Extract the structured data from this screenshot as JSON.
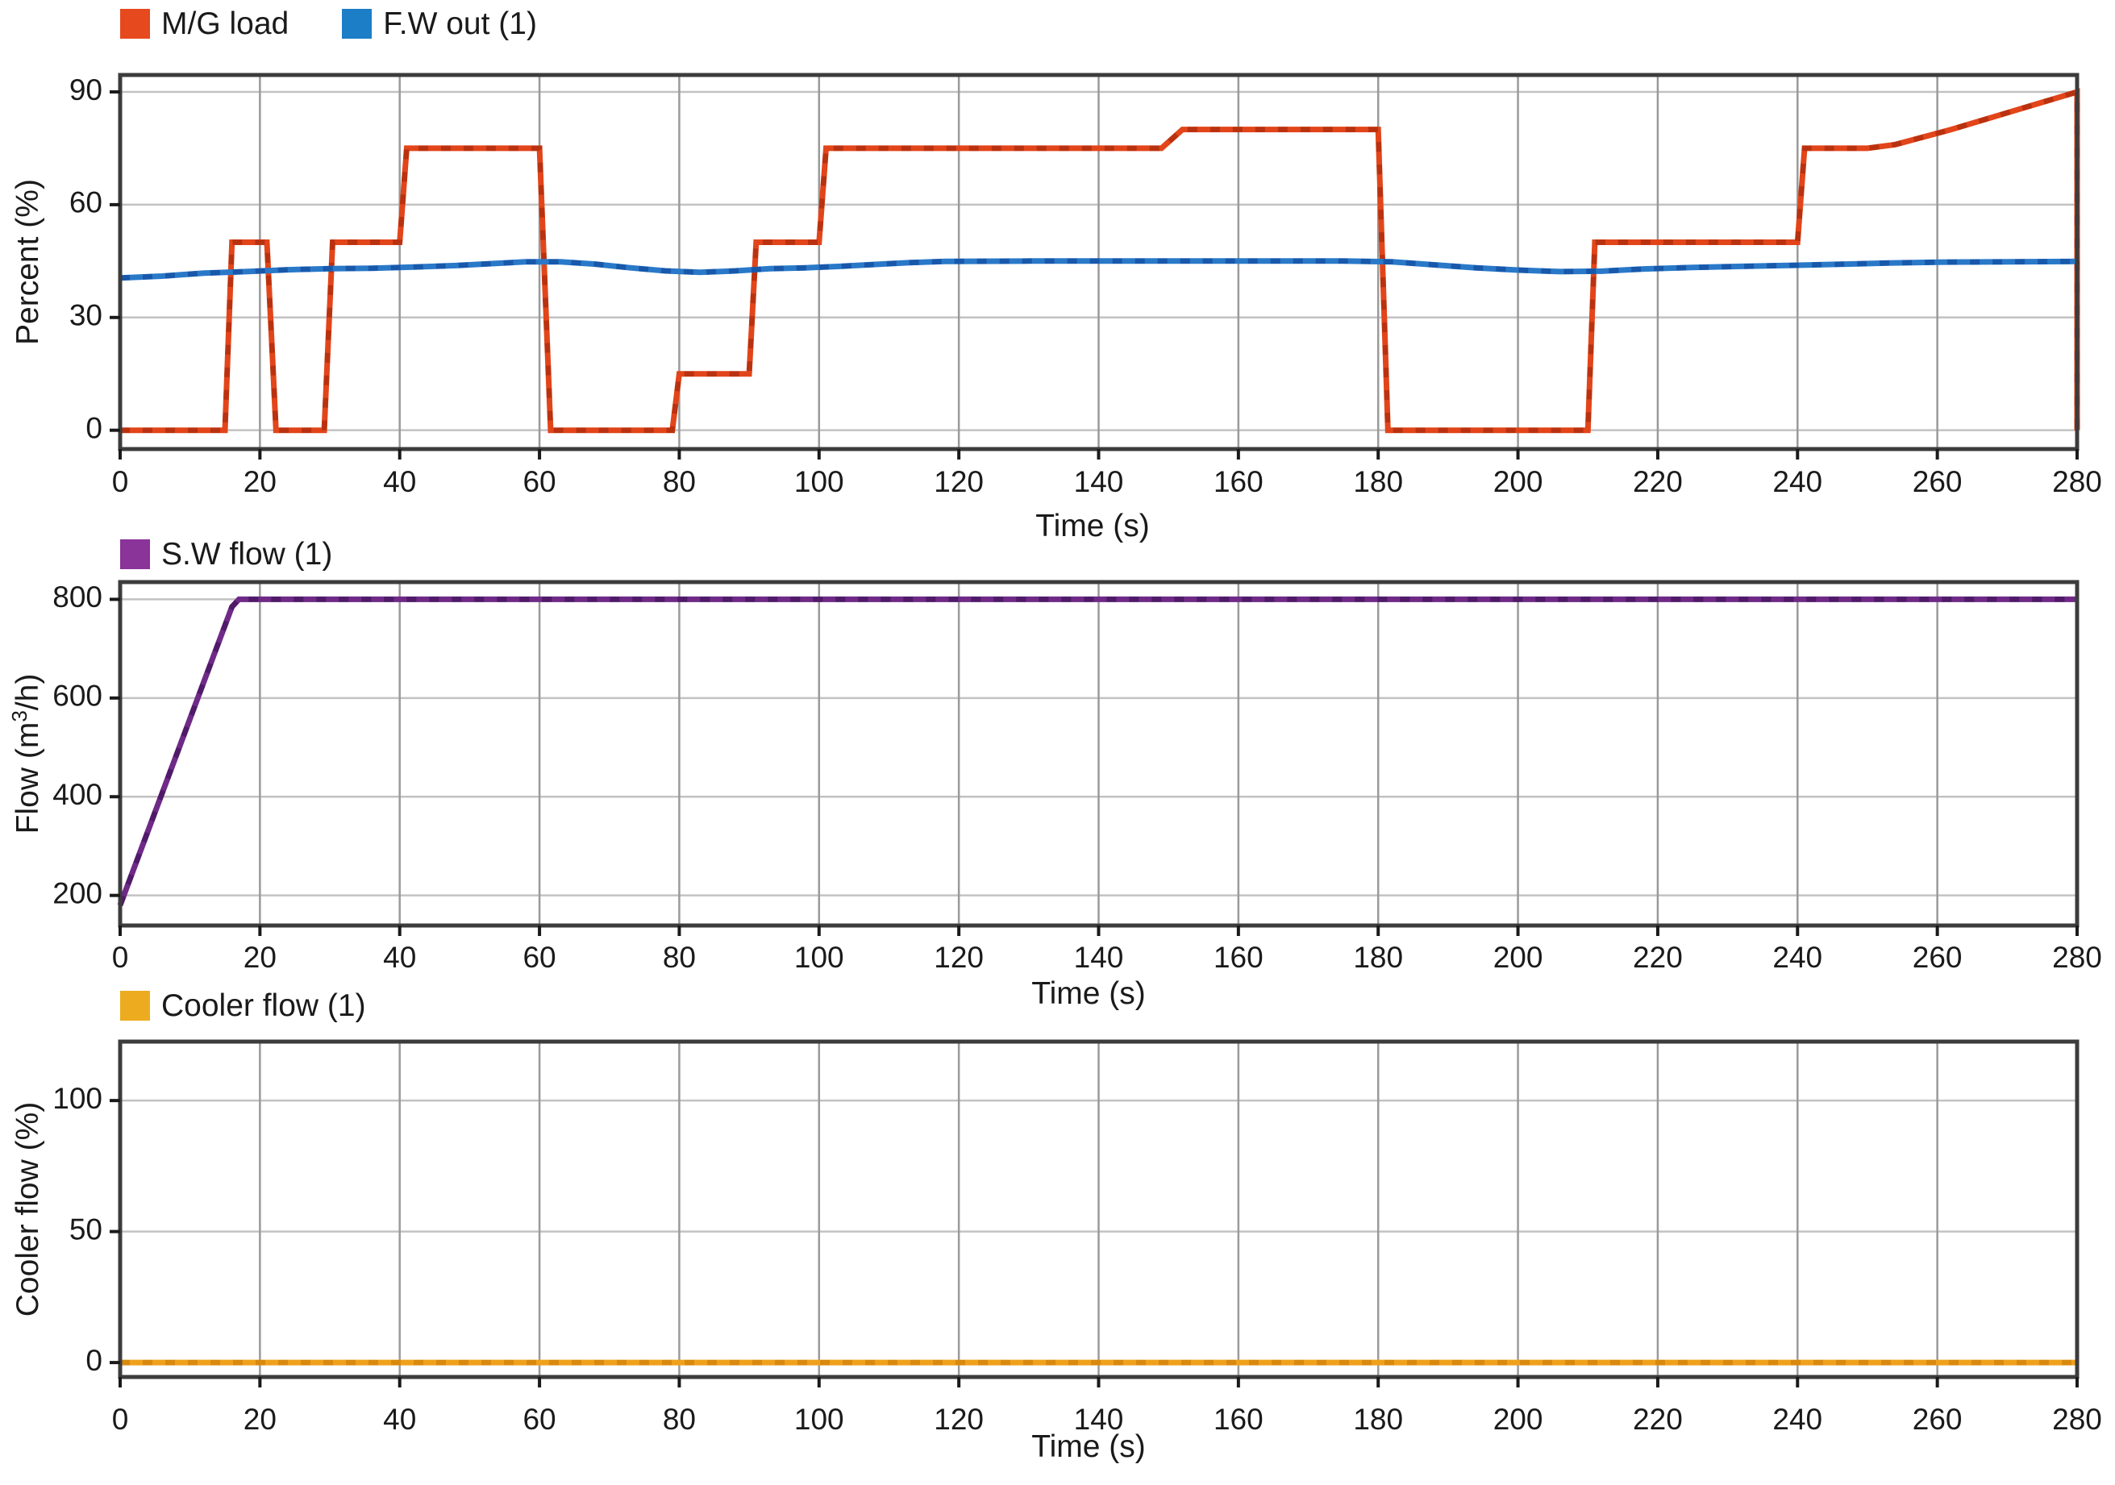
{
  "figure": {
    "background": "#ffffff",
    "frame_color": "#3c3c3c",
    "grid_color_vertical": "#9a9a9a",
    "grid_color_horizontal": "#c2c2c2",
    "tick_color": "#1a1a1a",
    "charts": [
      {
        "id": "percent",
        "legend": [
          {
            "label": "M/G load",
            "color": "#e5491d"
          },
          {
            "label": "F.W out (1)",
            "color": "#1b7ec6"
          }
        ],
        "ylabel_prefix": "Percent (%)",
        "ylabel_sup": "",
        "ylabel_suffix": "",
        "xlabel": "Time (s)",
        "xlim": [
          0,
          280
        ],
        "ylim": [
          -5,
          94.5
        ],
        "xticks": [
          0,
          20,
          40,
          60,
          80,
          100,
          120,
          140,
          160,
          180,
          200,
          220,
          240,
          260,
          280
        ],
        "yticks": [
          0,
          30,
          60,
          90
        ],
        "grid": true,
        "legend_position": "top-left"
      },
      {
        "id": "flow",
        "legend": [
          {
            "label": "S.W flow (1)",
            "color": "#8a3399"
          }
        ],
        "ylabel_prefix": "Flow (m",
        "ylabel_sup": "3",
        "ylabel_suffix": "/h)",
        "xlabel": "Time (s)",
        "xlim": [
          0,
          280
        ],
        "ylim": [
          139,
          835
        ],
        "xticks": [
          0,
          20,
          40,
          60,
          80,
          100,
          120,
          140,
          160,
          180,
          200,
          220,
          240,
          260,
          280
        ],
        "yticks": [
          200,
          400,
          600,
          800
        ],
        "grid": true,
        "legend_position": "top-left"
      },
      {
        "id": "cooler",
        "legend": [
          {
            "label": "Cooler flow (1)",
            "color": "#edab1f"
          }
        ],
        "ylabel_prefix": "Cooler flow (%)",
        "ylabel_sup": "",
        "ylabel_suffix": "",
        "xlabel": "Time (s)",
        "xlim": [
          0,
          280
        ],
        "ylim": [
          -5.5,
          122.5
        ],
        "xticks": [
          0,
          20,
          40,
          60,
          80,
          100,
          120,
          140,
          160,
          180,
          200,
          220,
          240,
          260,
          280
        ],
        "yticks": [
          0,
          50,
          100
        ],
        "grid": true,
        "legend_position": "top-left"
      }
    ],
    "chart_data": [
      {
        "type": "line",
        "title": "",
        "xlabel": "Time (s)",
        "ylabel": "Percent (%)",
        "xlim": [
          0,
          280
        ],
        "ylim": [
          -5,
          94.5
        ],
        "grid": true,
        "legend_position": "above-left",
        "series": [
          {
            "name": "M/G load",
            "color": "#e2451a",
            "dash_color": "#b93210",
            "points": [
              [
                0,
                0
              ],
              [
                15,
                0
              ],
              [
                16,
                50
              ],
              [
                21,
                50
              ],
              [
                22.3,
                0
              ],
              [
                29.2,
                0
              ],
              [
                30.4,
                50
              ],
              [
                40,
                50
              ],
              [
                41,
                75
              ],
              [
                60,
                75
              ],
              [
                61.6,
                0
              ],
              [
                79,
                0
              ],
              [
                80,
                15
              ],
              [
                90,
                15
              ],
              [
                91,
                50
              ],
              [
                100,
                50
              ],
              [
                101,
                75
              ],
              [
                149,
                75
              ],
              [
                152,
                80
              ],
              [
                180,
                80
              ],
              [
                181.4,
                0
              ],
              [
                210,
                0
              ],
              [
                211,
                50
              ],
              [
                240,
                50
              ],
              [
                241,
                75
              ],
              [
                250,
                75
              ],
              [
                254,
                76
              ],
              [
                262,
                80
              ],
              [
                271,
                85
              ],
              [
                280,
                90
              ],
              [
                280,
                0
              ]
            ]
          },
          {
            "name": "F.W out (1)",
            "color": "#2a79c9",
            "dash_color": "#1858aa",
            "points": [
              [
                0,
                40.5
              ],
              [
                6,
                41
              ],
              [
                12,
                41.8
              ],
              [
                18,
                42.2
              ],
              [
                24,
                42.7
              ],
              [
                30,
                43
              ],
              [
                36,
                43.1
              ],
              [
                42,
                43.4
              ],
              [
                48,
                43.8
              ],
              [
                54,
                44.4
              ],
              [
                58,
                44.8
              ],
              [
                63,
                44.8
              ],
              [
                68,
                44.2
              ],
              [
                73,
                43.2
              ],
              [
                78,
                42.4
              ],
              [
                83,
                42
              ],
              [
                88,
                42.4
              ],
              [
                93,
                43
              ],
              [
                98,
                43.2
              ],
              [
                103,
                43.6
              ],
              [
                108,
                44.1
              ],
              [
                113,
                44.6
              ],
              [
                118,
                44.9
              ],
              [
                130,
                45
              ],
              [
                145,
                45
              ],
              [
                160,
                45
              ],
              [
                175,
                45
              ],
              [
                182,
                44.8
              ],
              [
                188,
                44
              ],
              [
                194,
                43.2
              ],
              [
                200,
                42.6
              ],
              [
                206,
                42.2
              ],
              [
                212,
                42.3
              ],
              [
                218,
                42.9
              ],
              [
                225,
                43.3
              ],
              [
                232,
                43.6
              ],
              [
                240,
                43.9
              ],
              [
                247,
                44.2
              ],
              [
                253,
                44.5
              ],
              [
                260,
                44.7
              ],
              [
                270,
                44.8
              ],
              [
                280,
                44.9
              ]
            ]
          }
        ]
      },
      {
        "type": "line",
        "title": "",
        "xlabel": "Time (s)",
        "ylabel": "Flow (m3/h)",
        "xlim": [
          0,
          280
        ],
        "ylim": [
          139,
          835
        ],
        "grid": true,
        "legend_position": "above-left",
        "series": [
          {
            "name": "S.W flow (1)",
            "color": "#6f2a87",
            "dash_color": "#4f1a68",
            "points": [
              [
                0,
                180
              ],
              [
                16,
                785
              ],
              [
                17,
                800
              ],
              [
                280,
                800
              ]
            ]
          }
        ]
      },
      {
        "type": "line",
        "title": "",
        "xlabel": "Time (s)",
        "ylabel": "Cooler flow (%)",
        "xlim": [
          0,
          280
        ],
        "ylim": [
          -5.5,
          122.5
        ],
        "grid": true,
        "legend_position": "above-left",
        "series": [
          {
            "name": "Cooler flow (1)",
            "color": "#efa11c",
            "dash_color": "#d8890e",
            "points": [
              [
                0,
                0
              ],
              [
                280,
                0
              ]
            ]
          }
        ]
      }
    ]
  }
}
